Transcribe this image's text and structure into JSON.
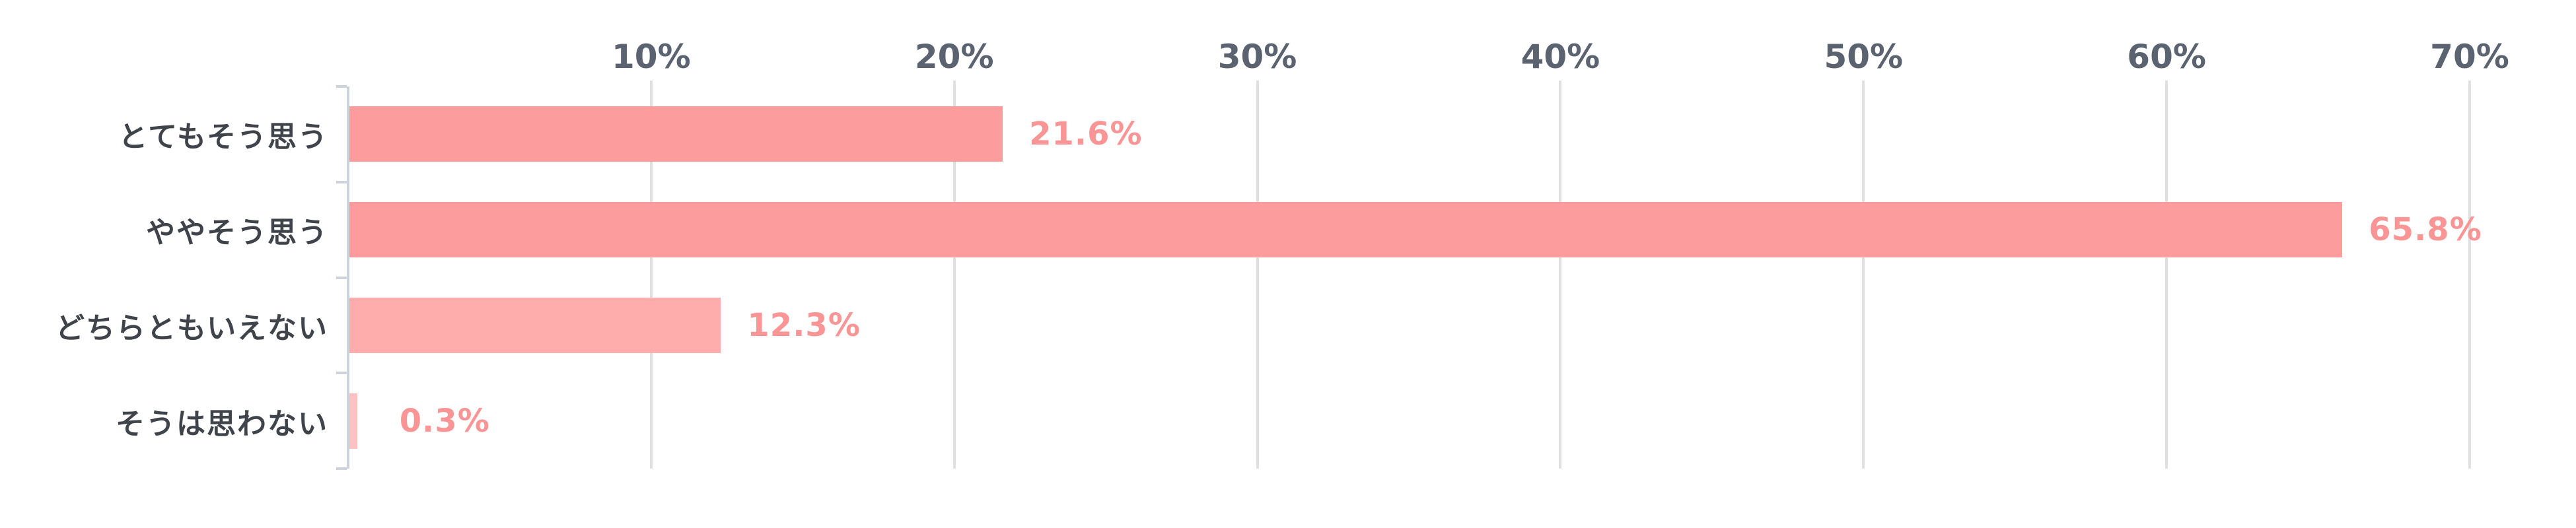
{
  "chart_data": {
    "type": "bar",
    "orientation": "horizontal",
    "title": "",
    "xlabel": "",
    "ylabel": "",
    "categories": [
      "とてもそう思う",
      "ややそう思う",
      "どちらともいえない",
      "そうは思わない"
    ],
    "values": [
      21.6,
      65.8,
      12.3,
      0.3
    ],
    "value_labels": [
      "21.6%",
      "65.8%",
      "12.3%",
      "0.3%"
    ],
    "x_tick_labels": [
      "10%",
      "20%",
      "30%",
      "40%",
      "50%",
      "60%",
      "70%"
    ],
    "x_tick_values": [
      10,
      20,
      30,
      40,
      50,
      60,
      70
    ],
    "xlim": [
      0,
      70
    ],
    "grid": true,
    "legend": false
  },
  "style": {
    "background": "#ffffff",
    "bar_colors": [
      "#fc9c9c",
      "#fc9c9c",
      "#ffacac",
      "#ffc2c2"
    ],
    "value_label_color": "#f99595",
    "tick_label_color": "#5b6370",
    "category_label_color": "#3f444b",
    "axis_color": "#ccd3dd",
    "gridline_color": "#e0e0e0"
  }
}
